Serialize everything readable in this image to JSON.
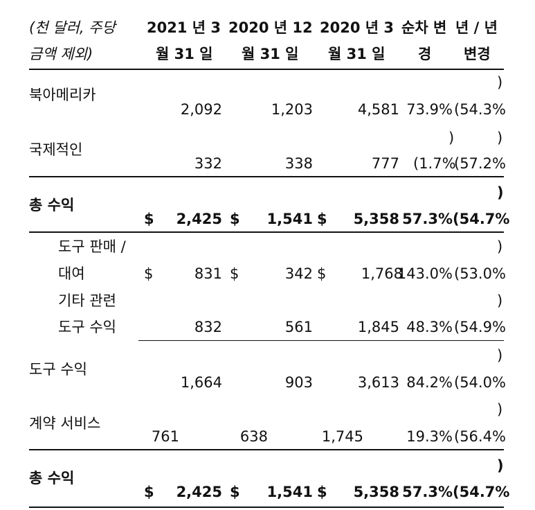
{
  "header": {
    "col0_line1": "(천 달러, 주당",
    "col0_line2": "금액 제외)",
    "col1_line1": "2021 년 3",
    "col1_line2": "월 31 일",
    "col2_line1": "2020 년 12",
    "col2_line2": "월 31 일",
    "col3_line1": "2020 년 3",
    "col3_line2": "월 31 일",
    "col4_line1": "순차 변",
    "col4_line2": "경",
    "col5_line1": "년 / 년",
    "col5_line2": "변경"
  },
  "rows": {
    "north_america": {
      "label": "북아메리카",
      "v1": "2,092",
      "v2": "1,203",
      "v3": "4,581",
      "seq": "73.9%",
      "yoy_open": "(54.3%",
      "yoy_close": ")"
    },
    "international": {
      "label": "국제적인",
      "v1": "332",
      "v2": "338",
      "v3": "777",
      "seq_open": "(1.7%",
      "seq_close": ")",
      "yoy_open": "(57.2%",
      "yoy_close": ")"
    },
    "total1": {
      "label": "총 수익",
      "dollar": "$",
      "v1": "2,425",
      "v2": "1,541",
      "v3": "5,358",
      "seq": "57.3%",
      "yoy_open": "(54.7%",
      "yoy_close": ")"
    },
    "tool_sales": {
      "label1": "도구 판매 /",
      "label2": "대여",
      "dollar": "$",
      "v1": "831",
      "v2": "342",
      "v3": "1,768",
      "seq": "143.0%",
      "yoy_open": "(53.0%",
      "yoy_close": ")"
    },
    "other_tool": {
      "label1": "기타 관련",
      "label2": "도구 수익",
      "v1": "832",
      "v2": "561",
      "v3": "1,845",
      "seq": "48.3%",
      "yoy_open": "(54.9%",
      "yoy_close": ")"
    },
    "tool_revenue": {
      "label": "도구 수익",
      "v1": "1,664",
      "v2": "903",
      "v3": "3,613",
      "seq": "84.2%",
      "yoy_open": "(54.0%",
      "yoy_close": ")"
    },
    "contract": {
      "label": "계약 서비스",
      "v1": "761",
      "v2": "638",
      "v3": "1,745",
      "seq": "19.3%",
      "yoy_open": "(56.4%",
      "yoy_close": ")"
    },
    "total2": {
      "label": "총 수익",
      "dollar": "$",
      "v1": "2,425",
      "v2": "1,541",
      "v3": "5,358",
      "seq": "57.3%",
      "yoy_open": "(54.7%",
      "yoy_close": ")"
    }
  }
}
